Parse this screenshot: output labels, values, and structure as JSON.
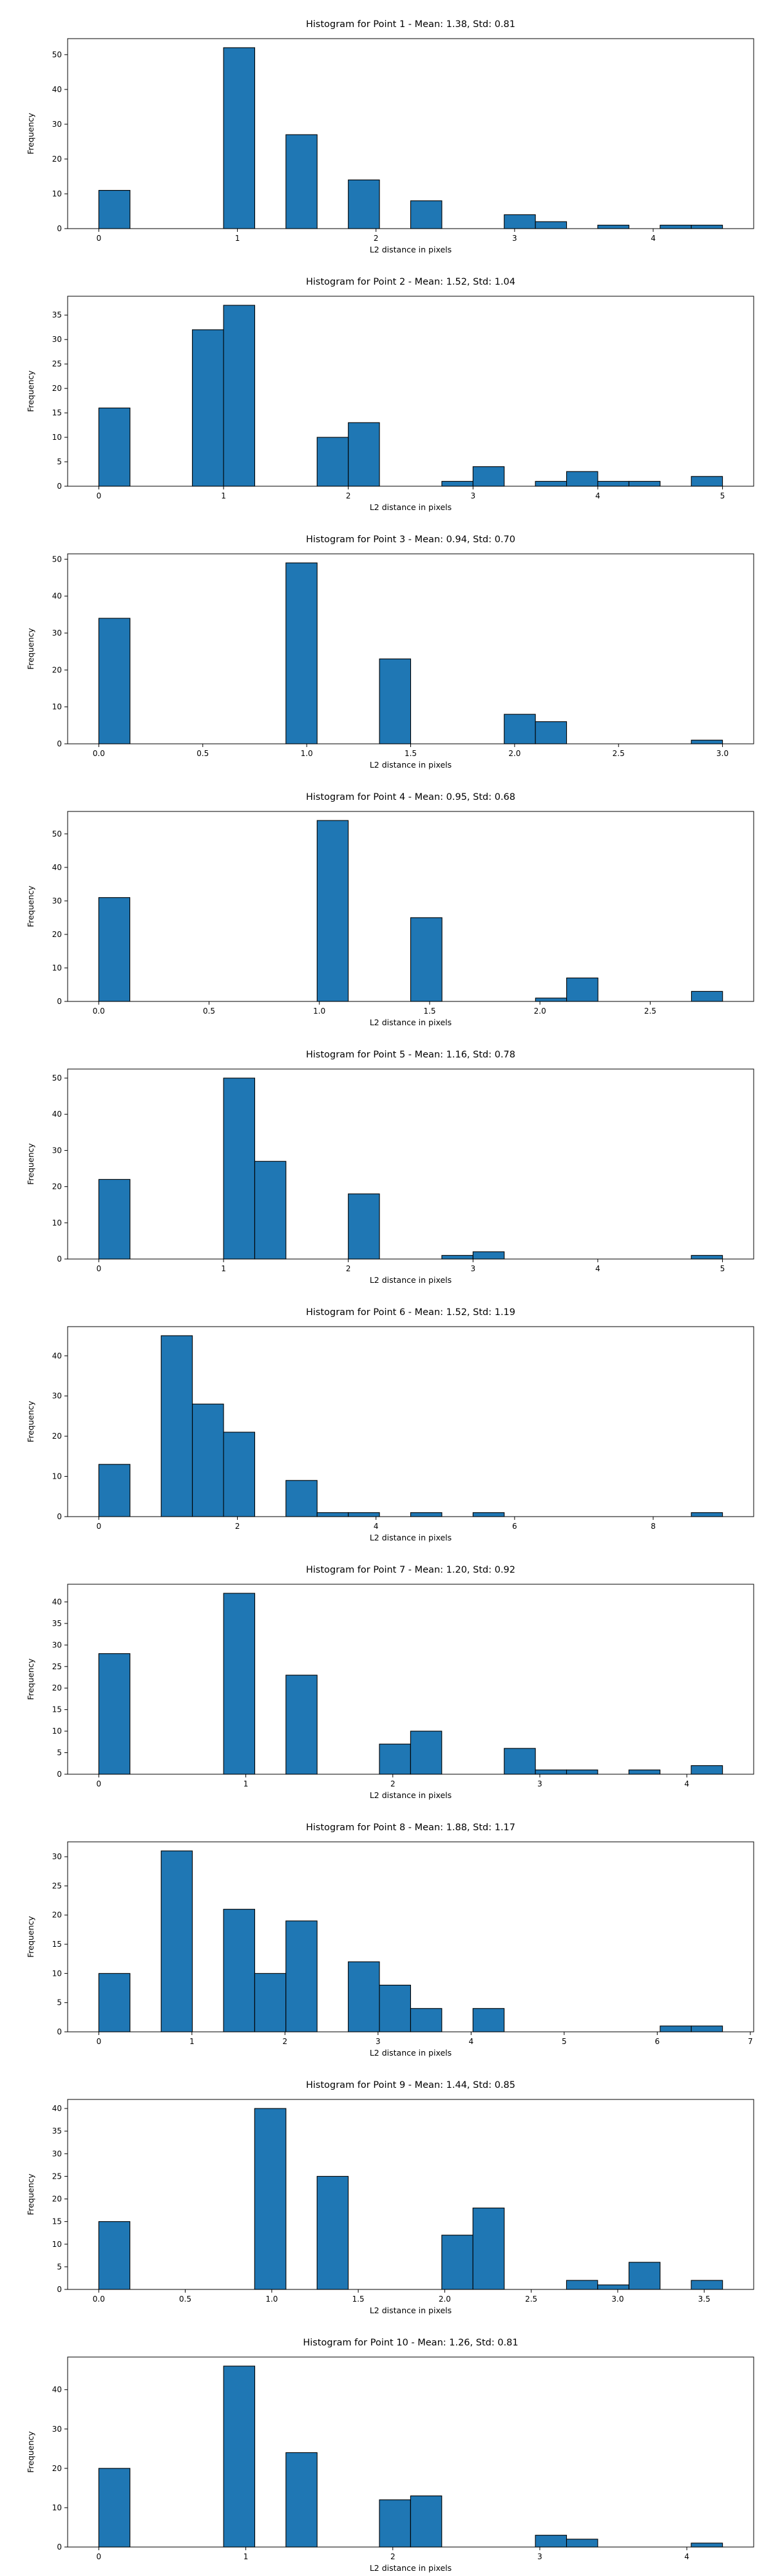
{
  "chart_data": [
    {
      "type": "bar",
      "title": "Histogram for Point 1 - Mean: 1.38, Std: 0.81",
      "xlabel": "L2 distance in pixels",
      "ylabel": "Frequency",
      "xlim": [
        -0.225,
        4.725
      ],
      "ylim": [
        0,
        54.6
      ],
      "xticks": [
        0,
        1,
        2,
        3,
        4
      ],
      "xtick_labels": [
        "0",
        "1",
        "2",
        "3",
        "4"
      ],
      "yticks": [
        0,
        10,
        20,
        30,
        40,
        50
      ],
      "bins": [
        [
          0,
          0.225,
          11
        ],
        [
          0.9,
          1.125,
          52
        ],
        [
          1.35,
          1.575,
          27
        ],
        [
          1.8,
          2.025,
          14
        ],
        [
          2.25,
          2.475,
          8
        ],
        [
          2.925,
          3.15,
          4
        ],
        [
          3.15,
          3.375,
          2
        ],
        [
          3.6,
          3.825,
          1
        ],
        [
          4.05,
          4.275,
          1
        ],
        [
          4.275,
          4.5,
          1
        ]
      ]
    },
    {
      "type": "bar",
      "title": "Histogram for Point 2 - Mean: 1.52, Std: 1.04",
      "xlabel": "L2 distance in pixels",
      "ylabel": "Frequency",
      "xlim": [
        -0.25,
        5.25
      ],
      "ylim": [
        0,
        38.85
      ],
      "xticks": [
        0,
        1,
        2,
        3,
        4,
        5
      ],
      "xtick_labels": [
        "0",
        "1",
        "2",
        "3",
        "4",
        "5"
      ],
      "yticks": [
        0,
        5,
        10,
        15,
        20,
        25,
        30,
        35
      ],
      "bins": [
        [
          0,
          0.25,
          16
        ],
        [
          0.75,
          1.0,
          32
        ],
        [
          1.0,
          1.25,
          37
        ],
        [
          1.75,
          2.0,
          10
        ],
        [
          2.0,
          2.25,
          13
        ],
        [
          2.75,
          3.0,
          1
        ],
        [
          3.0,
          3.25,
          4
        ],
        [
          3.5,
          3.75,
          1
        ],
        [
          3.75,
          4.0,
          3
        ],
        [
          4.0,
          4.25,
          1
        ],
        [
          4.25,
          4.5,
          1
        ],
        [
          4.75,
          5.0,
          2
        ]
      ]
    },
    {
      "type": "bar",
      "title": "Histogram for Point 3 - Mean: 0.94, Std: 0.70",
      "xlabel": "L2 distance in pixels",
      "ylabel": "Frequency",
      "xlim": [
        -0.15,
        3.15
      ],
      "ylim": [
        0,
        51.45
      ],
      "xticks": [
        0,
        0.5,
        1,
        1.5,
        2,
        2.5,
        3
      ],
      "xtick_labels": [
        "0.0",
        "0.5",
        "1.0",
        "1.5",
        "2.0",
        "2.5",
        "3.0"
      ],
      "yticks": [
        0,
        10,
        20,
        30,
        40,
        50
      ],
      "bins": [
        [
          0,
          0.15,
          34
        ],
        [
          0.9,
          1.05,
          49
        ],
        [
          1.35,
          1.5,
          23
        ],
        [
          1.95,
          2.1,
          8
        ],
        [
          2.1,
          2.25,
          6
        ],
        [
          2.85,
          3.0,
          1
        ]
      ]
    },
    {
      "type": "bar",
      "title": "Histogram for Point 4 - Mean: 0.95, Std: 0.68",
      "xlabel": "L2 distance in pixels",
      "ylabel": "Frequency",
      "xlim": [
        -0.141,
        2.969
      ],
      "ylim": [
        0,
        56.7
      ],
      "xticks": [
        0,
        0.5,
        1,
        1.5,
        2,
        2.5
      ],
      "xtick_labels": [
        "0.0",
        "0.5",
        "1.0",
        "1.5",
        "2.0",
        "2.5"
      ],
      "yticks": [
        0,
        10,
        20,
        30,
        40,
        50
      ],
      "bins": [
        [
          0,
          0.141,
          31
        ],
        [
          0.99,
          1.131,
          54
        ],
        [
          1.414,
          1.556,
          25
        ],
        [
          1.98,
          2.121,
          1
        ],
        [
          2.121,
          2.263,
          7
        ],
        [
          2.687,
          2.828,
          3
        ]
      ]
    },
    {
      "type": "bar",
      "title": "Histogram for Point 5 - Mean: 1.16, Std: 0.78",
      "xlabel": "L2 distance in pixels",
      "ylabel": "Frequency",
      "xlim": [
        -0.25,
        5.25
      ],
      "ylim": [
        0,
        52.5
      ],
      "xticks": [
        0,
        1,
        2,
        3,
        4,
        5
      ],
      "xtick_labels": [
        "0",
        "1",
        "2",
        "3",
        "4",
        "5"
      ],
      "yticks": [
        0,
        10,
        20,
        30,
        40,
        50
      ],
      "bins": [
        [
          0,
          0.25,
          22
        ],
        [
          1.0,
          1.25,
          50
        ],
        [
          1.25,
          1.5,
          27
        ],
        [
          2.0,
          2.25,
          18
        ],
        [
          2.75,
          3.0,
          1
        ],
        [
          3.0,
          3.25,
          2
        ],
        [
          4.75,
          5.0,
          1
        ]
      ]
    },
    {
      "type": "bar",
      "title": "Histogram for Point 6 - Mean: 1.52, Std: 1.19",
      "xlabel": "L2 distance in pixels",
      "ylabel": "Frequency",
      "xlim": [
        -0.45,
        9.45
      ],
      "ylim": [
        0,
        47.25
      ],
      "xticks": [
        0,
        2,
        4,
        6,
        8
      ],
      "xtick_labels": [
        "0",
        "2",
        "4",
        "6",
        "8"
      ],
      "yticks": [
        0,
        10,
        20,
        30,
        40
      ],
      "bins": [
        [
          0,
          0.45,
          13
        ],
        [
          0.9,
          1.35,
          45
        ],
        [
          1.35,
          1.8,
          28
        ],
        [
          1.8,
          2.25,
          21
        ],
        [
          2.7,
          3.15,
          9
        ],
        [
          3.15,
          3.6,
          1
        ],
        [
          3.6,
          4.05,
          1
        ],
        [
          4.5,
          4.95,
          1
        ],
        [
          5.4,
          5.85,
          1
        ],
        [
          8.55,
          9.0,
          1
        ]
      ]
    },
    {
      "type": "bar",
      "title": "Histogram for Point 7 - Mean: 1.20, Std: 0.92",
      "xlabel": "L2 distance in pixels",
      "ylabel": "Frequency",
      "xlim": [
        -0.212,
        4.455
      ],
      "ylim": [
        0,
        44.1
      ],
      "xticks": [
        0,
        1,
        2,
        3,
        4
      ],
      "xtick_labels": [
        "0",
        "1",
        "2",
        "3",
        "4"
      ],
      "yticks": [
        0,
        5,
        10,
        15,
        20,
        25,
        30,
        35,
        40
      ],
      "bins": [
        [
          0,
          0.212,
          28
        ],
        [
          0.849,
          1.061,
          42
        ],
        [
          1.273,
          1.485,
          23
        ],
        [
          1.909,
          2.121,
          7
        ],
        [
          2.121,
          2.333,
          10
        ],
        [
          2.758,
          2.97,
          6
        ],
        [
          2.97,
          3.182,
          1
        ],
        [
          3.182,
          3.394,
          1
        ],
        [
          3.606,
          3.818,
          1
        ],
        [
          4.03,
          4.243,
          2
        ]
      ]
    },
    {
      "type": "bar",
      "title": "Histogram for Point 8 - Mean: 1.88, Std: 1.17",
      "xlabel": "L2 distance in pixels",
      "ylabel": "Frequency",
      "xlim": [
        -0.335,
        7.036
      ],
      "ylim": [
        0,
        32.55
      ],
      "xticks": [
        0,
        1,
        2,
        3,
        4,
        5,
        6,
        7
      ],
      "xtick_labels": [
        "0",
        "1",
        "2",
        "3",
        "4",
        "5",
        "6",
        "7"
      ],
      "yticks": [
        0,
        5,
        10,
        15,
        20,
        25,
        30
      ],
      "bins": [
        [
          0,
          0.335,
          10
        ],
        [
          0.67,
          1.005,
          31
        ],
        [
          1.34,
          1.675,
          21
        ],
        [
          1.675,
          2.01,
          10
        ],
        [
          2.01,
          2.345,
          19
        ],
        [
          2.68,
          3.015,
          12
        ],
        [
          3.015,
          3.35,
          8
        ],
        [
          3.35,
          3.685,
          4
        ],
        [
          4.02,
          4.355,
          4
        ],
        [
          6.031,
          6.366,
          1
        ],
        [
          6.366,
          6.701,
          1
        ]
      ]
    },
    {
      "type": "bar",
      "title": "Histogram for Point 9 - Mean: 1.44, Std: 0.85",
      "xlabel": "L2 distance in pixels",
      "ylabel": "Frequency",
      "xlim": [
        -0.18,
        3.786
      ],
      "ylim": [
        0,
        42
      ],
      "xticks": [
        0,
        0.5,
        1,
        1.5,
        2,
        2.5,
        3,
        3.5
      ],
      "xtick_labels": [
        "0.0",
        "0.5",
        "1.0",
        "1.5",
        "2.0",
        "2.5",
        "3.0",
        "3.5"
      ],
      "yticks": [
        0,
        5,
        10,
        15,
        20,
        25,
        30,
        35,
        40
      ],
      "bins": [
        [
          0,
          0.18,
          15
        ],
        [
          0.901,
          1.082,
          40
        ],
        [
          1.262,
          1.442,
          25
        ],
        [
          1.983,
          2.163,
          12
        ],
        [
          2.163,
          2.344,
          18
        ],
        [
          2.704,
          2.884,
          2
        ],
        [
          2.884,
          3.065,
          1
        ],
        [
          3.065,
          3.245,
          6
        ],
        [
          3.425,
          3.606,
          2
        ]
      ]
    },
    {
      "type": "bar",
      "title": "Histogram for Point 10 - Mean: 1.26, Std: 0.81",
      "xlabel": "L2 distance in pixels",
      "ylabel": "Frequency",
      "xlim": [
        -0.212,
        4.455
      ],
      "ylim": [
        0,
        48.3
      ],
      "xticks": [
        0,
        1,
        2,
        3,
        4
      ],
      "xtick_labels": [
        "0",
        "1",
        "2",
        "3",
        "4"
      ],
      "yticks": [
        0,
        10,
        20,
        30,
        40
      ],
      "bins": [
        [
          0,
          0.212,
          20
        ],
        [
          0.849,
          1.061,
          46
        ],
        [
          1.273,
          1.485,
          24
        ],
        [
          1.909,
          2.121,
          12
        ],
        [
          2.121,
          2.333,
          13
        ],
        [
          2.97,
          3.182,
          3
        ],
        [
          3.182,
          3.394,
          2
        ],
        [
          4.03,
          4.243,
          1
        ]
      ]
    }
  ]
}
